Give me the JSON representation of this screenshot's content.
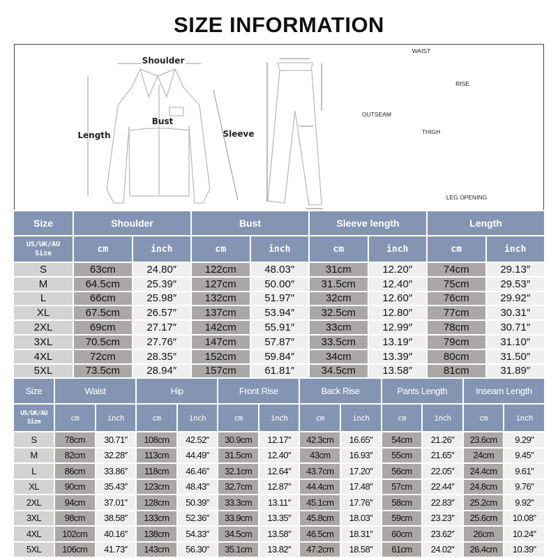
{
  "title": "SIZE INFORMATION",
  "diagram": {
    "shirt_labels": {
      "shoulder": "Shoulder",
      "bust": "Bust",
      "length": "Length",
      "sleeve": "Sleeve"
    },
    "pants_labels": {
      "waist": "WAIST",
      "rise": "RISE",
      "outseam": "OUTSEAM",
      "thigh": "THIGH",
      "leg_opening": "LEG OPENING"
    }
  },
  "colors": {
    "header": "#8395b3",
    "size_cell": "#d3d3d3",
    "cm_cell": "#aba7a7",
    "inch_cell": "#efefef"
  },
  "top_table": {
    "size_header": "Size",
    "size_subheader": [
      "US/UK/AU",
      "Size"
    ],
    "columns": [
      "Shoulder",
      "Bust",
      "Sleeve length",
      "Length"
    ],
    "units": [
      "cm",
      "inch"
    ],
    "rows": [
      [
        "S",
        "63cm",
        "24.80″",
        "122cm",
        "48.03″",
        "31cm",
        "12.20″",
        "74cm",
        "29.13″"
      ],
      [
        "M",
        "64.5cm",
        "25.39″",
        "127cm",
        "50.00″",
        "31.5cm",
        "12.40″",
        "75cm",
        "29.53″"
      ],
      [
        "L",
        "66cm",
        "25.98″",
        "132cm",
        "51.97″",
        "32cm",
        "12.60″",
        "76cm",
        "29.92″"
      ],
      [
        "XL",
        "67.5cm",
        "26.57″",
        "137cm",
        "53.94″",
        "32.5cm",
        "12.80″",
        "77cm",
        "30.31″"
      ],
      [
        "2XL",
        "69cm",
        "27.17″",
        "142cm",
        "55.91″",
        "33cm",
        "12.99″",
        "78cm",
        "30.71″"
      ],
      [
        "3XL",
        "70.5cm",
        "27.76″",
        "147cm",
        "57.87″",
        "33.5cm",
        "13.19″",
        "79cm",
        "31.10″"
      ],
      [
        "4XL",
        "72cm",
        "28.35″",
        "152cm",
        "59.84″",
        "34cm",
        "13.39″",
        "80cm",
        "31.50″"
      ],
      [
        "5XL",
        "73.5cm",
        "28.94″",
        "157cm",
        "61.81″",
        "34.5cm",
        "13.58″",
        "81cm",
        "31.89″"
      ]
    ]
  },
  "bottom_table": {
    "size_header": "Size",
    "size_subheader": [
      "US/UK/AU",
      "Size"
    ],
    "columns": [
      "Waist",
      "Hip",
      "Front Rise",
      "Back Rise",
      "Pants Length",
      "Inseam Length"
    ],
    "units": [
      "cm",
      "inch"
    ],
    "rows": [
      [
        "S",
        "78cm",
        "30.71″",
        "108cm",
        "42.52″",
        "30.9cm",
        "12.17″",
        "42.3cm",
        "16.65″",
        "54cm",
        "21.26″",
        "23.6cm",
        "9.29″"
      ],
      [
        "M",
        "82cm",
        "32.28″",
        "113cm",
        "44.49″",
        "31.5cm",
        "12.40″",
        "43cm",
        "16.93″",
        "55cm",
        "21.65″",
        "24cm",
        "9.45″"
      ],
      [
        "L",
        "86cm",
        "33.86″",
        "118cm",
        "46.46″",
        "32.1cm",
        "12.64″",
        "43.7cm",
        "17.20″",
        "56cm",
        "22.05″",
        "24.4cm",
        "9.61″"
      ],
      [
        "XL",
        "90cm",
        "35.43″",
        "123cm",
        "48.43″",
        "32.7cm",
        "12.87″",
        "44.4cm",
        "17.48″",
        "57cm",
        "22.44″",
        "24.8cm",
        "9.76″"
      ],
      [
        "2XL",
        "94cm",
        "37.01″",
        "128cm",
        "50.39″",
        "33.3cm",
        "13.11″",
        "45.1cm",
        "17.76″",
        "58cm",
        "22.83″",
        "25.2cm",
        "9.92″"
      ],
      [
        "3XL",
        "98cm",
        "38.58″",
        "133cm",
        "52.36″",
        "33.9cm",
        "13.35″",
        "45.8cm",
        "18.03″",
        "59cm",
        "23.23″",
        "25.6cm",
        "10.08″"
      ],
      [
        "4XL",
        "102cm",
        "40.16″",
        "138cm",
        "54.33″",
        "34.5cm",
        "13.58″",
        "46.5cm",
        "18.31″",
        "60cm",
        "23.62″",
        "26cm",
        "10.24″"
      ],
      [
        "5XL",
        "106cm",
        "41.73″",
        "143cm",
        "56.30″",
        "35.1cm",
        "13.82″",
        "47.2cm",
        "18.58″",
        "61cm",
        "24.02″",
        "26.4cm",
        "10.39″"
      ]
    ]
  }
}
